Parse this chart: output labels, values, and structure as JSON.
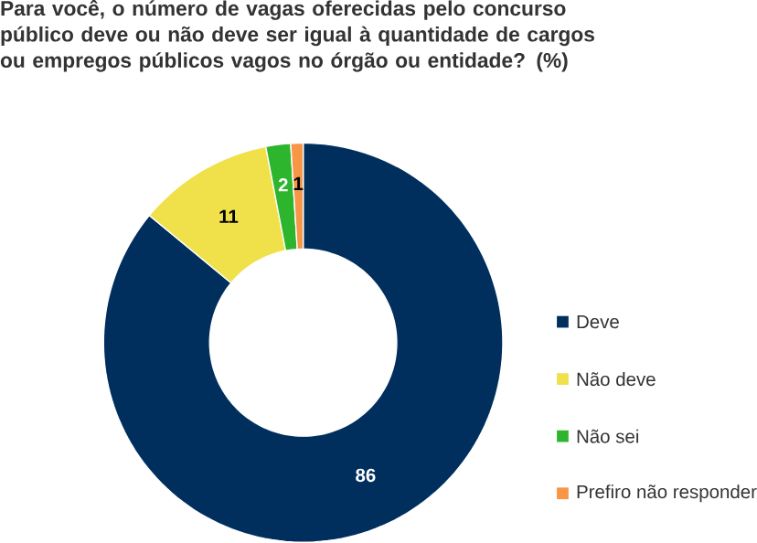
{
  "chart_data": {
    "type": "donut",
    "title": "Para você, o número de vagas oferecidas pelo concurso público deve ou não deve ser igual à quantidade de cargos ou empregos públicos vagos no órgão ou entidade? (%)",
    "categories": [
      "Deve",
      "Não deve",
      "Não sei",
      "Prefiro não responder"
    ],
    "values": [
      86,
      11,
      2,
      1
    ],
    "colors": [
      "#002f5e",
      "#f0e04a",
      "#2db52d",
      "#f79646"
    ],
    "data_labels": true,
    "legend": "right"
  }
}
